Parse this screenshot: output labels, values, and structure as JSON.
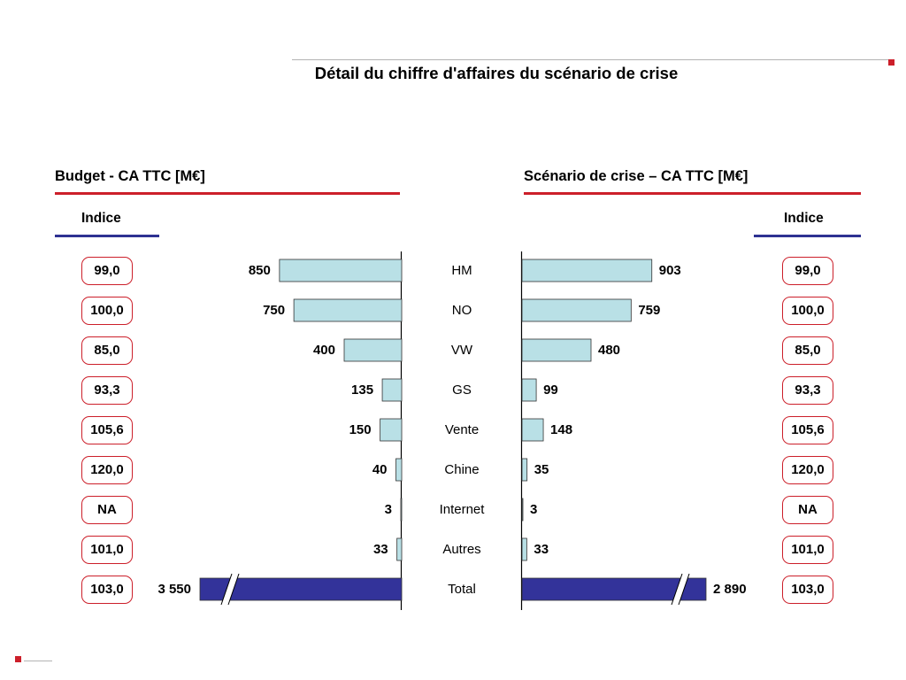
{
  "title": "Détail du chiffre d'affaires du scénario de crise",
  "colors": {
    "accent_red": "#cc1f2a",
    "accent_blue": "#2e3192",
    "bar_light": "#b9e0e6",
    "bar_dark": "#33339a"
  },
  "left_panel": {
    "title": "Budget - CA TTC [M€]",
    "indice_label": "Indice"
  },
  "right_panel": {
    "title": "Scénario de crise – CA TTC [M€]",
    "indice_label": "Indice"
  },
  "chart_data": {
    "type": "bar",
    "orientation": "horizontal-butterfly",
    "categories": [
      "HM",
      "NO",
      "VW",
      "GS",
      "Vente",
      "Chine",
      "Internet",
      "Autres",
      "Total"
    ],
    "series": [
      {
        "name": "Budget - CA TTC [M€]",
        "values": [
          850,
          750,
          400,
          135,
          150,
          40,
          3,
          33,
          3550
        ],
        "labels": [
          "850",
          "750",
          "400",
          "135",
          "150",
          "40",
          "3",
          "33",
          "3 550"
        ]
      },
      {
        "name": "Scénario de crise – CA TTC [M€]",
        "values": [
          903,
          759,
          480,
          99,
          148,
          35,
          3,
          33,
          2890
        ],
        "labels": [
          "903",
          "759",
          "480",
          "99",
          "148",
          "35",
          "3",
          "33",
          "2 890"
        ]
      }
    ],
    "left_indices": [
      "99,0",
      "100,0",
      "85,0",
      "93,3",
      "105,6",
      "120,0",
      "NA",
      "101,0",
      "103,0"
    ],
    "right_indices": [
      "99,0",
      "100,0",
      "85,0",
      "93,3",
      "105,6",
      "120,0",
      "NA",
      "101,0",
      "103,0"
    ],
    "axis_break_on": [
      "Total"
    ]
  }
}
